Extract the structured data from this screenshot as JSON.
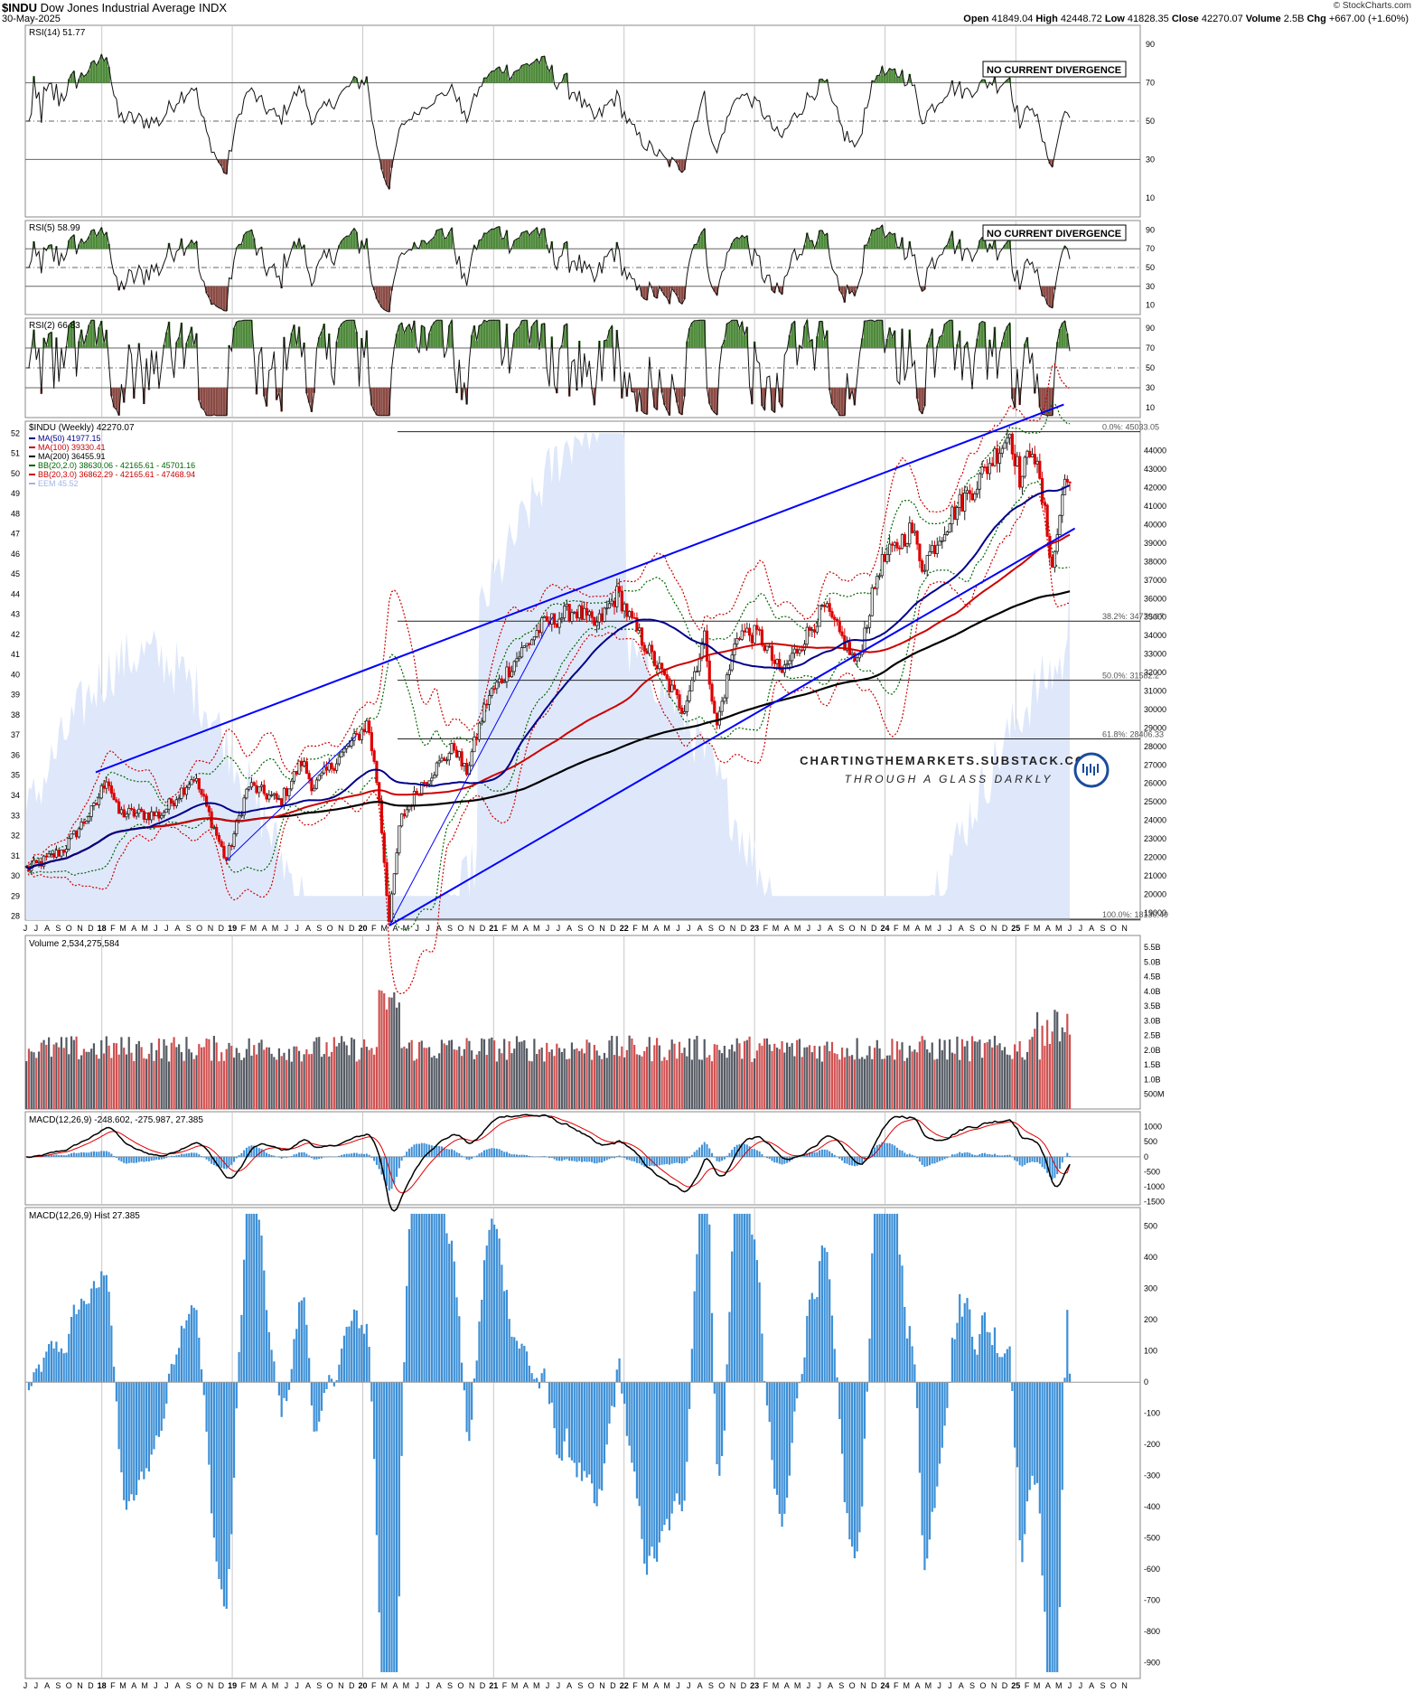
{
  "header": {
    "symbol": "$INDU",
    "name": "Dow Jones Industrial Average INDX",
    "date": "30-May-2025",
    "brand": "© StockCharts.com",
    "stats": [
      {
        "label": "Open",
        "value": "41849.04"
      },
      {
        "label": "High",
        "value": "42448.72"
      },
      {
        "label": "Low",
        "value": "41828.35"
      },
      {
        "label": "Close",
        "value": "42270.07"
      },
      {
        "label": "Volume",
        "value": "2.5B"
      },
      {
        "label": "Chg",
        "value": "+667.00 (+1.60%)"
      }
    ]
  },
  "colors": {
    "green": "#2d5d1f",
    "green_fill": "#4e8a3a",
    "red_fill": "#8a4a44",
    "blue_line": "#0000ff",
    "ma50": "#00008b",
    "ma100": "#cc0000",
    "ma200": "#000000",
    "bb20_2": "#006400",
    "bb20_3": "#cc0000",
    "eem_fill": "#dfe8fa",
    "macd_hist": "#3c8fd6",
    "vol_up": "#555a63",
    "vol_down": "#d05050"
  },
  "watermark": {
    "line1": "CHARTINGTHEMARKETS.SUBSTACK.COM",
    "line2": "THROUGH A GLASS DARKLY"
  },
  "time_axis": {
    "labels": [
      "J",
      "J",
      "A",
      "S",
      "O",
      "N",
      "D",
      "18",
      "F",
      "M",
      "A",
      "M",
      "J",
      "J",
      "A",
      "S",
      "O",
      "N",
      "D",
      "19",
      "F",
      "M",
      "A",
      "M",
      "J",
      "J",
      "A",
      "S",
      "O",
      "N",
      "D",
      "20",
      "F",
      "M",
      "A",
      "M",
      "J",
      "J",
      "A",
      "S",
      "O",
      "N",
      "D",
      "21",
      "F",
      "M",
      "A",
      "M",
      "J",
      "J",
      "A",
      "S",
      "O",
      "N",
      "D",
      "22",
      "F",
      "M",
      "A",
      "M",
      "J",
      "J",
      "A",
      "S",
      "O",
      "N",
      "D",
      "23",
      "F",
      "M",
      "A",
      "M",
      "J",
      "J",
      "A",
      "S",
      "O",
      "N",
      "D",
      "24",
      "F",
      "M",
      "A",
      "M",
      "J",
      "J",
      "A",
      "S",
      "O",
      "N",
      "D",
      "25",
      "F",
      "M",
      "A",
      "M",
      "J",
      "J",
      "A",
      "S",
      "O",
      "N"
    ]
  },
  "chart_data": [
    {
      "type": "line",
      "panel": "rsi14",
      "title": "RSI(14) 51.77",
      "y_ticks": [
        90,
        70,
        50,
        30,
        10
      ],
      "ylim": [
        0,
        100
      ],
      "reference_lines": [
        70,
        50,
        30
      ],
      "annotation": "NO CURRENT DIVERGENCE",
      "last_value": 51.77
    },
    {
      "type": "line",
      "panel": "rsi5",
      "title": "RSI(5) 58.99",
      "y_ticks": [
        90,
        70,
        50,
        30,
        10
      ],
      "ylim": [
        0,
        100
      ],
      "reference_lines": [
        70,
        50,
        30
      ],
      "annotation": "NO CURRENT DIVERGENCE",
      "last_value": 58.99
    },
    {
      "type": "line",
      "panel": "rsi2",
      "title": "RSI(2) 66.83",
      "y_ticks": [
        90,
        70,
        50,
        30,
        10
      ],
      "ylim": [
        0,
        100
      ],
      "reference_lines": [
        70,
        50,
        30
      ],
      "last_value": 66.83
    },
    {
      "type": "line",
      "panel": "price",
      "title": "$INDU (Weekly) 42270.07",
      "legend": [
        {
          "text": "MA(50) 41977.15",
          "color": "#00008b"
        },
        {
          "text": "MA(100) 39330.41",
          "color": "#cc0000"
        },
        {
          "text": "MA(200) 36455.91",
          "color": "#000000"
        },
        {
          "text": "BB(20,2.0) 38630.06 - 42165.61 - 45701.16",
          "color": "#006400"
        },
        {
          "text": "BB(20,3.0) 36862.29 - 42165.61 - 47468.94",
          "color": "#cc0000"
        },
        {
          "text": "EEM 45.52",
          "color": "#9fb4e8"
        }
      ],
      "y_ticks_right": [
        44000,
        43000,
        42000,
        41000,
        40000,
        39000,
        38000,
        37000,
        36000,
        35000,
        34000,
        33000,
        32000,
        31000,
        30000,
        29000,
        28000,
        27000,
        26000,
        25000,
        24000,
        23000,
        22000,
        21000,
        20000,
        19000
      ],
      "y_ticks_left": [
        52,
        51,
        50,
        49,
        48,
        47,
        46,
        45,
        44,
        43,
        42,
        41,
        40,
        39,
        38,
        37,
        36,
        35,
        34,
        33,
        32,
        31,
        30,
        29,
        28
      ],
      "ylim_right": [
        18600,
        45600
      ],
      "ylim_left": [
        27.8,
        52.6
      ],
      "fib_levels": [
        {
          "label": "0.0%: 45033.05",
          "value": 45033.05
        },
        {
          "label": "38.2%: 34779.07",
          "value": 34779.07
        },
        {
          "label": "50.0%: 31582.2",
          "value": 31582.2
        },
        {
          "label": "61.8%: 28406.33",
          "value": 28406.33
        },
        {
          "label": "100.0%: 18130.49",
          "value": 18130.49
        }
      ],
      "series_anchors_date_close": [
        [
          "2017-06",
          21400
        ],
        [
          "2017-09",
          22400
        ],
        [
          "2017-12",
          24800
        ],
        [
          "2018-01",
          26400
        ],
        [
          "2018-02",
          24400
        ],
        [
          "2018-06",
          24300
        ],
        [
          "2018-09",
          26400
        ],
        [
          "2018-10",
          25000
        ],
        [
          "2018-12",
          21800
        ],
        [
          "2019-02",
          25900
        ],
        [
          "2019-05",
          25000
        ],
        [
          "2019-07",
          27200
        ],
        [
          "2019-08",
          25800
        ],
        [
          "2019-12",
          28500
        ],
        [
          "2020-01",
          29300
        ],
        [
          "2020-02",
          25400
        ],
        [
          "2020-03",
          18500
        ],
        [
          "2020-04",
          24000
        ],
        [
          "2020-06",
          26000
        ],
        [
          "2020-09",
          28000
        ],
        [
          "2020-10",
          26500
        ],
        [
          "2020-12",
          30600
        ],
        [
          "2021-03",
          33000
        ],
        [
          "2021-05",
          34500
        ],
        [
          "2021-08",
          35400
        ],
        [
          "2021-10",
          34500
        ],
        [
          "2021-12",
          36300
        ],
        [
          "2022-01",
          35000
        ],
        [
          "2022-03",
          33000
        ],
        [
          "2022-06",
          30000
        ],
        [
          "2022-08",
          33900
        ],
        [
          "2022-09",
          28900
        ],
        [
          "2022-11",
          34200
        ],
        [
          "2023-01",
          34000
        ],
        [
          "2023-03",
          31900
        ],
        [
          "2023-07",
          35500
        ],
        [
          "2023-10",
          32400
        ],
        [
          "2023-12",
          37700
        ],
        [
          "2024-03",
          39800
        ],
        [
          "2024-04",
          37800
        ],
        [
          "2024-07",
          40800
        ],
        [
          "2024-09",
          42300
        ],
        [
          "2024-12",
          45000
        ],
        [
          "2025-01",
          42300
        ],
        [
          "2025-02",
          44500
        ],
        [
          "2025-03",
          41500
        ],
        [
          "2025-04",
          37600
        ],
        [
          "2025-05",
          42270
        ]
      ]
    },
    {
      "type": "bar",
      "panel": "volume",
      "title": "Volume 2,534,275,584",
      "y_ticks": [
        "5.5B",
        "5.0B",
        "4.5B",
        "4.0B",
        "3.5B",
        "3.0B",
        "2.5B",
        "2.0B",
        "1.5B",
        "1.0B",
        "500M"
      ],
      "ylim": [
        0,
        5.9
      ],
      "last_value": "2.5B"
    },
    {
      "type": "line",
      "panel": "macd",
      "title": "MACD(12,26,9) -248.602, -275.987, 27.385",
      "y_ticks": [
        1000,
        500,
        0,
        -500,
        -1000,
        -1500
      ],
      "ylim": [
        -1600,
        1500
      ],
      "values": {
        "macd": -248.602,
        "signal": -275.987,
        "hist": 27.385
      }
    },
    {
      "type": "bar",
      "panel": "macd_hist",
      "title": "MACD(12,26,9) Hist 27.385",
      "y_ticks": [
        500,
        400,
        300,
        200,
        100,
        0,
        -100,
        -200,
        -300,
        -400,
        -500,
        -600,
        -700,
        -800,
        -900
      ],
      "ylim": [
        -950,
        560
      ],
      "last_value": 27.385
    }
  ]
}
